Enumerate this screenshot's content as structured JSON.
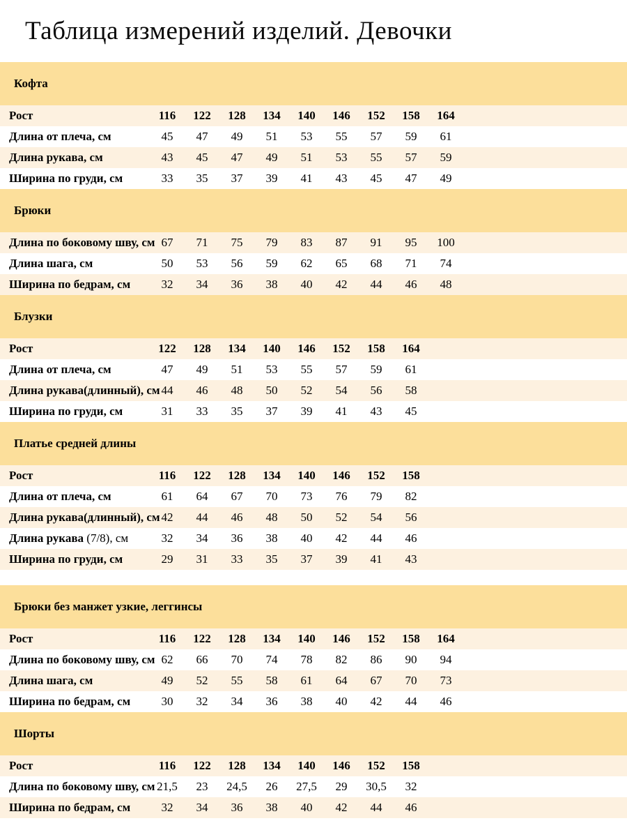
{
  "page": {
    "title": "Таблица измерений изделий. Девочки"
  },
  "colors": {
    "section_band": "#fcdf9b",
    "row_cream": "#fdf1e0",
    "row_white": "#ffffff",
    "text": "#000000",
    "background": "#ffffff"
  },
  "sections": [
    {
      "id": "kofta",
      "name": "Кофта",
      "gap_before": false,
      "rows": [
        {
          "header": true,
          "label": "Рост",
          "label_suffix": "",
          "values": [
            "116",
            "122",
            "128",
            "134",
            "140",
            "146",
            "152",
            "158",
            "164"
          ]
        },
        {
          "header": false,
          "label": "Длина от плеча, см",
          "label_suffix": "",
          "values": [
            "45",
            "47",
            "49",
            "51",
            "53",
            "55",
            "57",
            "59",
            "61"
          ]
        },
        {
          "header": false,
          "label": "Длина рукава, см",
          "label_suffix": "",
          "values": [
            "43",
            "45",
            "47",
            "49",
            "51",
            "53",
            "55",
            "57",
            "59"
          ]
        },
        {
          "header": false,
          "label": "Ширина по груди, см",
          "label_suffix": "",
          "values": [
            "33",
            "35",
            "37",
            "39",
            "41",
            "43",
            "45",
            "47",
            "49"
          ]
        }
      ]
    },
    {
      "id": "bryuki",
      "name": "Брюки",
      "gap_before": false,
      "rows": [
        {
          "header": false,
          "label": "Длина по боковому шву, см",
          "label_suffix": "",
          "values": [
            "67",
            "71",
            "75",
            "79",
            "83",
            "87",
            "91",
            "95",
            "100"
          ]
        },
        {
          "header": false,
          "label": "Длина шага, см",
          "label_suffix": "",
          "values": [
            "50",
            "53",
            "56",
            "59",
            "62",
            "65",
            "68",
            "71",
            "74"
          ]
        },
        {
          "header": false,
          "label": "Ширина по бедрам, см",
          "label_suffix": "",
          "values": [
            "32",
            "34",
            "36",
            "38",
            "40",
            "42",
            "44",
            "46",
            "48"
          ]
        }
      ]
    },
    {
      "id": "bluzki",
      "name": "Блузки",
      "gap_before": false,
      "rows": [
        {
          "header": true,
          "label": "Рост",
          "label_suffix": "",
          "values": [
            "122",
            "128",
            "134",
            "140",
            "146",
            "152",
            "158",
            "164"
          ]
        },
        {
          "header": false,
          "label": "Длина от плеча, см",
          "label_suffix": "",
          "values": [
            "47",
            "49",
            "51",
            "53",
            "55",
            "57",
            "59",
            "61"
          ]
        },
        {
          "header": false,
          "label": "Длина рукава(длинный), см",
          "label_suffix": "",
          "values": [
            "44",
            "46",
            "48",
            "50",
            "52",
            "54",
            "56",
            "58"
          ]
        },
        {
          "header": false,
          "label": "Ширина по груди, см",
          "label_suffix": "",
          "values": [
            "31",
            "33",
            "35",
            "37",
            "39",
            "41",
            "43",
            "45"
          ]
        }
      ]
    },
    {
      "id": "platye",
      "name": "Платье средней длины",
      "gap_before": false,
      "rows": [
        {
          "header": true,
          "label": "Рост",
          "label_suffix": "",
          "values": [
            "116",
            "122",
            "128",
            "134",
            "140",
            "146",
            "152",
            "158"
          ]
        },
        {
          "header": false,
          "label": "Длина от плеча, см",
          "label_suffix": "",
          "values": [
            "61",
            "64",
            "67",
            "70",
            "73",
            "76",
            "79",
            "82"
          ]
        },
        {
          "header": false,
          "label": "Длина рукава(длинный), см",
          "label_suffix": "",
          "values": [
            "42",
            "44",
            "46",
            "48",
            "50",
            "52",
            "54",
            "56"
          ]
        },
        {
          "header": false,
          "label": "Длина рукава ",
          "label_suffix": "(7/8), см",
          "values": [
            "32",
            "34",
            "36",
            "38",
            "40",
            "42",
            "44",
            "46"
          ]
        },
        {
          "header": false,
          "label": "Ширина по груди, см",
          "label_suffix": "",
          "values": [
            "29",
            "31",
            "33",
            "35",
            "37",
            "39",
            "41",
            "43"
          ]
        }
      ]
    },
    {
      "id": "legginsy",
      "name": "Брюки без манжет узкие, леггинсы",
      "gap_before": true,
      "rows": [
        {
          "header": true,
          "label": "Рост",
          "label_suffix": "",
          "values": [
            "116",
            "122",
            "128",
            "134",
            "140",
            "146",
            "152",
            "158",
            "164"
          ]
        },
        {
          "header": false,
          "label": "Длина по боковому шву, см",
          "label_suffix": "",
          "values": [
            "62",
            "66",
            "70",
            "74",
            "78",
            "82",
            "86",
            "90",
            "94"
          ]
        },
        {
          "header": false,
          "label": "Длина шага, см",
          "label_suffix": "",
          "values": [
            "49",
            "52",
            "55",
            "58",
            "61",
            "64",
            "67",
            "70",
            "73"
          ]
        },
        {
          "header": false,
          "label": "Ширина по бедрам, см",
          "label_suffix": "",
          "values": [
            "30",
            "32",
            "34",
            "36",
            "38",
            "40",
            "42",
            "44",
            "46"
          ]
        }
      ]
    },
    {
      "id": "shorty",
      "name": "Шорты",
      "gap_before": false,
      "rows": [
        {
          "header": true,
          "label": "Рост",
          "label_suffix": "",
          "values": [
            "116",
            "122",
            "128",
            "134",
            "140",
            "146",
            "152",
            "158"
          ]
        },
        {
          "header": false,
          "label": "Длина по боковому шву, см",
          "label_suffix": "",
          "values": [
            "21,5",
            "23",
            "24,5",
            "26",
            "27,5",
            "29",
            "30,5",
            "32"
          ]
        },
        {
          "header": false,
          "label": "Ширина по бедрам, см",
          "label_suffix": "",
          "values": [
            "32",
            "34",
            "36",
            "38",
            "40",
            "42",
            "44",
            "46"
          ]
        }
      ]
    }
  ]
}
